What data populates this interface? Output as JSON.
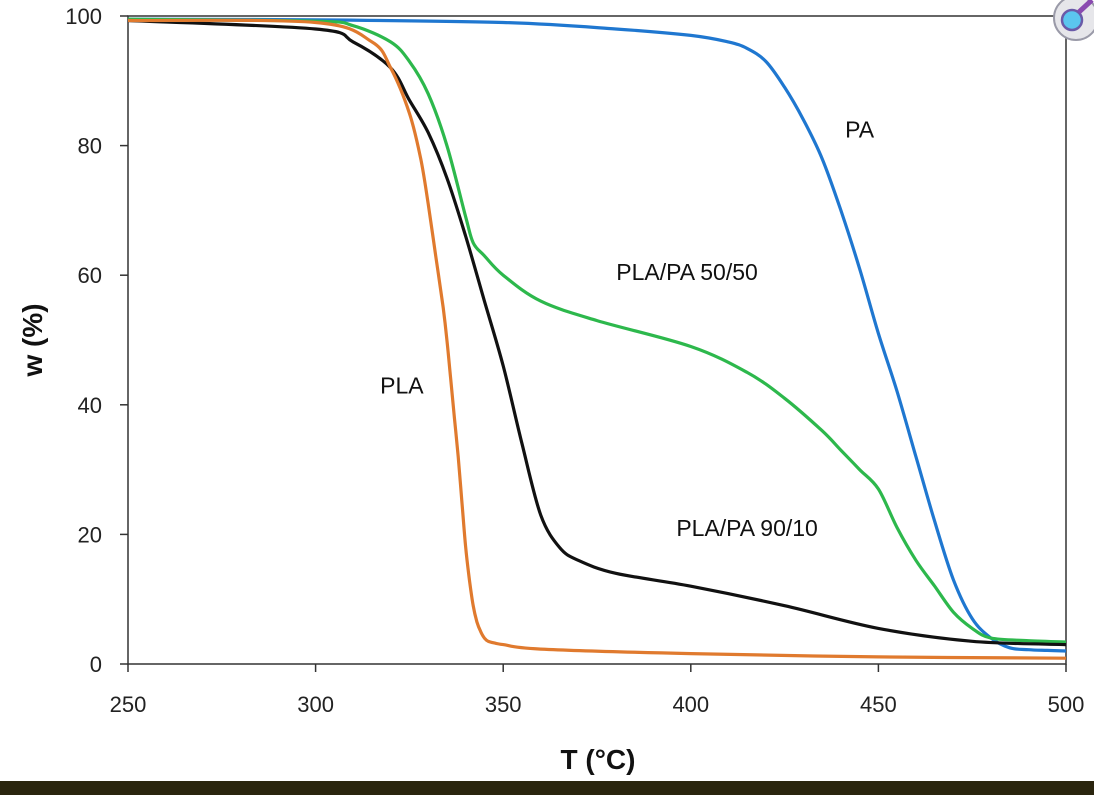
{
  "chart_data": {
    "type": "line",
    "title": "",
    "xlabel": "T (°C)",
    "ylabel": "w (%)",
    "xlim": [
      250,
      500
    ],
    "ylim": [
      0,
      100
    ],
    "xticks": [
      250,
      300,
      350,
      400,
      450,
      500
    ],
    "yticks": [
      0,
      20,
      40,
      60,
      80,
      100
    ],
    "grid": false,
    "legend": "none",
    "series": [
      {
        "name": "PA",
        "color": "#1f77d0",
        "x": [
          250,
          300,
          350,
          380,
          400,
          410,
          415,
          420,
          425,
          430,
          435,
          440,
          445,
          450,
          455,
          460,
          465,
          470,
          475,
          480,
          485,
          490,
          495,
          500
        ],
        "y": [
          99.5,
          99.4,
          99,
          98,
          97,
          96,
          95,
          93,
          89,
          84,
          78,
          70,
          61,
          51,
          42,
          32,
          22,
          13,
          7,
          4,
          2.5,
          2.2,
          2.1,
          2
        ]
      },
      {
        "name": "PLA/PA 50/50",
        "color": "#2db84c",
        "x": [
          250,
          300,
          310,
          320,
          325,
          330,
          335,
          340,
          342,
          345,
          350,
          360,
          375,
          400,
          415,
          425,
          435,
          440,
          445,
          450,
          455,
          460,
          465,
          470,
          475,
          480,
          490,
          500
        ],
        "y": [
          99.5,
          99.2,
          98.5,
          96,
          93,
          88,
          80,
          69,
          65,
          63,
          60,
          56,
          53,
          49,
          45,
          41,
          36,
          33,
          30,
          27,
          21,
          16,
          12,
          8,
          5.5,
          4,
          3.6,
          3.4
        ]
      },
      {
        "name": "PLA/PA 90/10",
        "color": "#111111",
        "x": [
          250,
          300,
          310,
          320,
          325,
          330,
          335,
          340,
          345,
          350,
          355,
          360,
          365,
          370,
          380,
          400,
          425,
          450,
          475,
          500
        ],
        "y": [
          99.3,
          98,
          96,
          92,
          87,
          82,
          75,
          66,
          56,
          46,
          34,
          23,
          18,
          16,
          14,
          12,
          9,
          5.5,
          3.5,
          3
        ]
      },
      {
        "name": "PLA",
        "color": "#e07a2e",
        "x": [
          250,
          300,
          315,
          320,
          325,
          328,
          330,
          332,
          334,
          335,
          336,
          337,
          338,
          339,
          340,
          341,
          342,
          343,
          344,
          345,
          346,
          348,
          350,
          360,
          400,
          450,
          500
        ],
        "y": [
          99.3,
          99,
          96,
          92,
          85,
          78,
          71,
          63,
          55,
          50,
          44,
          38,
          32,
          25,
          18,
          13,
          9,
          6.5,
          5,
          4,
          3.5,
          3.2,
          3,
          2.3,
          1.6,
          1.1,
          0.9
        ]
      }
    ],
    "annotations": [
      {
        "text": "PA",
        "x": 445,
        "y": 82.5
      },
      {
        "text": "PLA/PA 50/50",
        "x": 399,
        "y": 60.5
      },
      {
        "text": "PLA",
        "x": 323,
        "y": 43
      },
      {
        "text": "PLA/PA 90/10",
        "x": 415,
        "y": 21
      }
    ]
  }
}
